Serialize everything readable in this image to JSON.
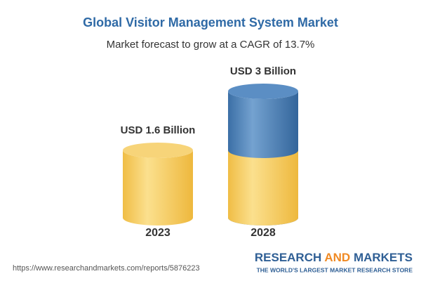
{
  "chart_data": {
    "type": "cylinder",
    "title": "Global Visitor Management System Market",
    "subtitle": "Market forecast to grow at a CAGR of 13.7%",
    "categories": [
      "2023",
      "2028"
    ],
    "values": [
      1.6,
      3
    ],
    "value_labels": [
      "USD 1.6 Billion",
      "USD 3 Billion"
    ],
    "color": "#f3c553",
    "growth_color": "#4a7db5"
  },
  "source": "https://www.researchandmarkets.com/reports/5876223",
  "brand": {
    "words": [
      "RESEARCH",
      "AND",
      "MARKETS"
    ],
    "tagline": "THE WORLD'S LARGEST MARKET RESEARCH STORE"
  }
}
